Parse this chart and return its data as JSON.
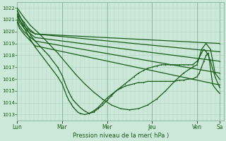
{
  "background_color": "#cce8d8",
  "grid_color_minor": "#b0d4c0",
  "grid_color_major": "#90b8a0",
  "line_color": "#1a5c1a",
  "xlabel_text": "Pression niveau de la mer( hPa )",
  "ylim": [
    1012.5,
    1022.5
  ],
  "yticks": [
    1013,
    1014,
    1015,
    1016,
    1017,
    1018,
    1019,
    1020,
    1021,
    1022
  ],
  "xlim": [
    0,
    4.6
  ],
  "day_positions": [
    0,
    1,
    2,
    3,
    4,
    4.5
  ],
  "day_labels": [
    "Lun",
    "Mar",
    "Mer",
    "Jeu",
    "Ven",
    "Sa"
  ],
  "lines": [
    {
      "x": [
        0.0,
        0.05,
        0.15,
        0.25,
        0.4,
        4.5
      ],
      "y": [
        1021.8,
        1021.3,
        1020.8,
        1020.3,
        1019.8,
        1019.0
      ]
    },
    {
      "x": [
        0.0,
        0.05,
        0.15,
        0.3,
        0.4,
        4.5
      ],
      "y": [
        1021.5,
        1021.0,
        1020.5,
        1020.0,
        1019.8,
        1018.3
      ]
    },
    {
      "x": [
        0.0,
        0.05,
        0.15,
        0.3,
        0.4,
        4.5
      ],
      "y": [
        1021.3,
        1020.8,
        1020.3,
        1019.8,
        1019.5,
        1017.5
      ]
    },
    {
      "x": [
        0.0,
        0.05,
        0.15,
        0.3,
        0.4,
        4.5
      ],
      "y": [
        1021.0,
        1020.5,
        1020.0,
        1019.5,
        1019.2,
        1016.5
      ]
    },
    {
      "x": [
        0.0,
        0.05,
        0.15,
        0.3,
        0.4,
        4.5
      ],
      "y": [
        1020.8,
        1020.3,
        1019.8,
        1019.2,
        1018.8,
        1015.5
      ]
    },
    {
      "x": [
        0.0,
        0.1,
        0.2,
        0.3,
        0.4,
        0.5,
        0.6,
        0.7,
        0.8,
        0.9,
        1.0,
        1.05,
        1.1,
        1.15,
        1.2,
        1.25,
        1.3,
        1.35,
        1.4,
        1.5,
        1.6,
        1.7,
        1.8,
        1.9,
        2.0,
        2.1,
        2.2,
        2.3,
        2.4,
        2.5,
        2.6,
        2.7,
        2.8,
        2.9,
        3.0,
        3.1,
        3.2,
        3.3,
        3.4,
        3.5,
        3.6,
        3.7,
        3.8,
        3.9,
        4.0,
        4.05,
        4.1,
        4.15,
        4.2,
        4.25,
        4.3,
        4.35,
        4.4,
        4.5
      ],
      "y": [
        1021.8,
        1021.0,
        1020.3,
        1019.7,
        1019.2,
        1018.8,
        1018.4,
        1018.0,
        1017.5,
        1017.0,
        1016.3,
        1015.8,
        1015.3,
        1014.9,
        1014.5,
        1014.2,
        1014.0,
        1013.8,
        1013.6,
        1013.3,
        1013.1,
        1013.2,
        1013.5,
        1013.8,
        1014.2,
        1014.6,
        1015.0,
        1015.3,
        1015.6,
        1015.9,
        1016.2,
        1016.5,
        1016.7,
        1016.9,
        1017.0,
        1017.1,
        1017.2,
        1017.2,
        1017.2,
        1017.2,
        1017.2,
        1017.2,
        1017.2,
        1017.2,
        1017.5,
        1017.8,
        1018.2,
        1018.5,
        1018.3,
        1018.0,
        1017.5,
        1016.8,
        1016.2,
        1015.3
      ]
    },
    {
      "x": [
        0.0,
        0.1,
        0.2,
        0.3,
        0.4,
        0.5,
        0.6,
        0.7,
        0.8,
        0.9,
        1.0,
        1.05,
        1.1,
        1.15,
        1.2,
        1.25,
        1.3,
        1.35,
        1.4,
        1.5,
        1.6,
        1.7,
        1.8,
        1.9,
        2.0,
        2.1,
        2.2,
        2.3,
        2.4,
        2.5,
        2.6,
        2.7,
        2.8,
        2.9,
        3.0,
        3.1,
        3.2,
        3.3,
        3.4,
        3.5,
        3.6,
        3.7,
        3.8,
        3.9,
        4.0,
        4.05,
        4.1,
        4.15,
        4.2,
        4.25,
        4.35,
        4.45,
        4.5
      ],
      "y": [
        1021.5,
        1020.7,
        1020.0,
        1019.3,
        1018.7,
        1018.2,
        1017.7,
        1017.2,
        1016.7,
        1016.2,
        1015.6,
        1015.1,
        1014.6,
        1014.2,
        1013.9,
        1013.6,
        1013.4,
        1013.2,
        1013.1,
        1013.0,
        1013.1,
        1013.3,
        1013.6,
        1014.0,
        1014.4,
        1014.7,
        1015.0,
        1015.2,
        1015.4,
        1015.5,
        1015.6,
        1015.7,
        1015.7,
        1015.8,
        1015.8,
        1015.8,
        1015.8,
        1015.8,
        1015.8,
        1015.8,
        1015.9,
        1015.9,
        1016.0,
        1016.0,
        1016.2,
        1016.5,
        1017.0,
        1017.5,
        1018.0,
        1018.2,
        1015.5,
        1015.0,
        1014.8
      ]
    },
    {
      "x": [
        0.0,
        0.15,
        0.3,
        0.5,
        0.7,
        0.9,
        1.1,
        1.3,
        1.5,
        1.7,
        1.9,
        2.1,
        2.3,
        2.5,
        2.7,
        2.9,
        3.1,
        3.3,
        3.5,
        3.7,
        3.9,
        4.0,
        4.1,
        4.2,
        4.3,
        4.4,
        4.5
      ],
      "y": [
        1022.0,
        1021.2,
        1020.5,
        1019.8,
        1019.0,
        1018.2,
        1017.3,
        1016.4,
        1015.6,
        1014.9,
        1014.3,
        1013.8,
        1013.5,
        1013.4,
        1013.5,
        1013.8,
        1014.3,
        1015.0,
        1015.8,
        1016.5,
        1017.0,
        1017.2,
        1018.5,
        1019.0,
        1018.5,
        1016.5,
        1016.0
      ]
    }
  ]
}
